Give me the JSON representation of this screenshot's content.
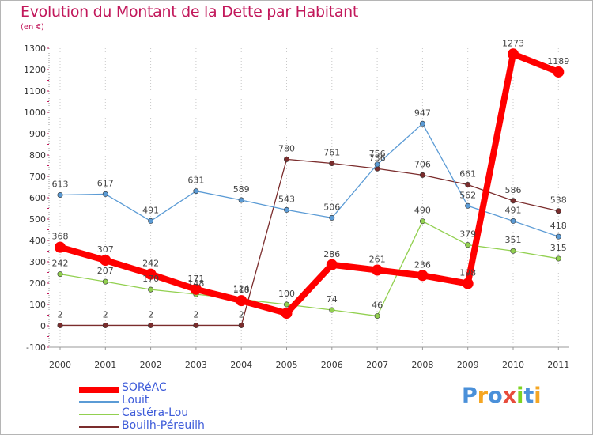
{
  "chart_data": {
    "type": "line",
    "title": "Evolution du Montant de la Dette par Habitant",
    "subtitle": "(en €)",
    "xlabel": "",
    "ylabel": "",
    "x": [
      "2000",
      "2001",
      "2002",
      "2003",
      "2004",
      "2005",
      "2006",
      "2007",
      "2008",
      "2009",
      "2010",
      "2011"
    ],
    "ylim": [
      -100,
      1300
    ],
    "yticks": [
      "-100",
      "0",
      "100",
      "200",
      "300",
      "400",
      "500",
      "600",
      "700",
      "800",
      "900",
      "1000",
      "1100",
      "1200",
      "1300"
    ],
    "grid": "vertical-dotted",
    "legend_position": "bottom-left",
    "series": [
      {
        "name": "SORéAC",
        "color": "#ff0000",
        "values": [
          368,
          307,
          242,
          171,
          118,
          59,
          286,
          261,
          236,
          198,
          1273,
          1189
        ],
        "labels": [
          "368",
          "307",
          "242",
          "171",
          "118",
          "",
          "286",
          "261",
          "236",
          "198",
          "1273",
          "1189"
        ]
      },
      {
        "name": "Louit",
        "color": "#5b9bd5",
        "values": [
          613,
          617,
          491,
          631,
          589,
          543,
          506,
          756,
          947,
          562,
          491,
          418
        ],
        "labels": [
          "613",
          "617",
          "491",
          "631",
          "589",
          "543",
          "506",
          "756",
          "947",
          "562",
          "491",
          "418"
        ]
      },
      {
        "name": "Castéra-Lou",
        "color": "#92d050",
        "values": [
          242,
          207,
          170,
          148,
          124,
          100,
          74,
          46,
          490,
          379,
          351,
          315
        ],
        "labels": [
          "242",
          "207",
          "170",
          "148",
          "124",
          "100",
          "74",
          "46",
          "490",
          "379",
          "351",
          "315"
        ]
      },
      {
        "name": "Bouilh-Péreuilh",
        "color": "#7b2d2d",
        "values": [
          2,
          2,
          2,
          2,
          2,
          780,
          761,
          736,
          706,
          661,
          586,
          538
        ],
        "labels": [
          "2",
          "2",
          "2",
          "2",
          "2",
          "780",
          "761",
          "736",
          "706",
          "661",
          "586",
          "538"
        ]
      }
    ]
  },
  "logo": {
    "letters": [
      {
        "ch": "P",
        "color": "#4a90d9"
      },
      {
        "ch": "r",
        "color": "#f5a623"
      },
      {
        "ch": "o",
        "color": "#4a90d9"
      },
      {
        "ch": "x",
        "color": "#e74c3c"
      },
      {
        "ch": "i",
        "color": "#7ed321"
      },
      {
        "ch": "t",
        "color": "#4a90d9"
      },
      {
        "ch": "i",
        "color": "#f5a623"
      }
    ]
  }
}
